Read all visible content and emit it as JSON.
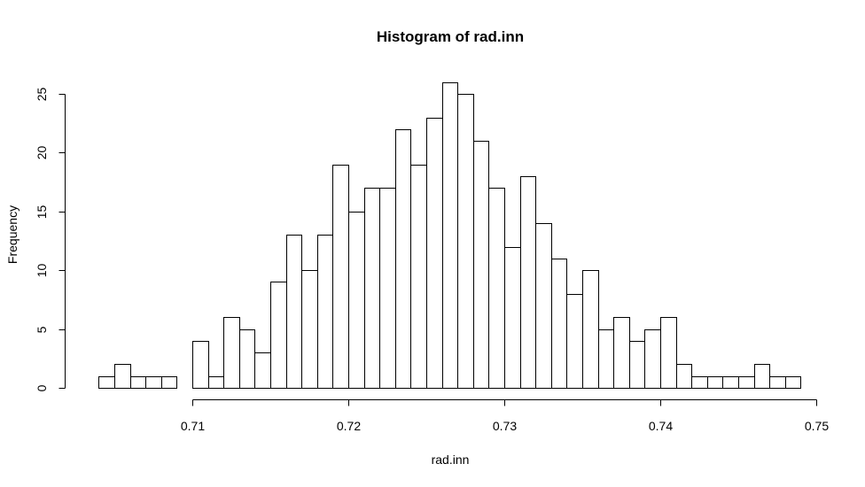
{
  "chart_data": {
    "type": "bar",
    "title": "Histogram of rad.inn",
    "xlabel": "rad.inn",
    "ylabel": "Frequency",
    "bin_start": 0.704,
    "bin_width": 0.001,
    "values": [
      1,
      2,
      1,
      1,
      1,
      0,
      4,
      1,
      6,
      5,
      3,
      9,
      13,
      10,
      13,
      19,
      15,
      17,
      17,
      22,
      19,
      23,
      26,
      25,
      21,
      17,
      12,
      18,
      14,
      11,
      8,
      10,
      5,
      6,
      4,
      5,
      6,
      2,
      1,
      1,
      1,
      1,
      2,
      1,
      1
    ],
    "xlim": [
      0.7,
      0.75
    ],
    "ylim": [
      0,
      26
    ],
    "x_ticks": [
      0.71,
      0.72,
      0.73,
      0.74,
      0.75
    ],
    "x_tick_labels": [
      "0.71",
      "0.72",
      "0.73",
      "0.74",
      "0.75"
    ],
    "y_ticks": [
      0,
      5,
      10,
      15,
      20,
      25
    ],
    "y_tick_labels": [
      "0",
      "5",
      "10",
      "15",
      "20",
      "25"
    ],
    "bar_fill": "#ffffff",
    "bar_stroke": "#000000",
    "grid": false,
    "legend": false
  }
}
